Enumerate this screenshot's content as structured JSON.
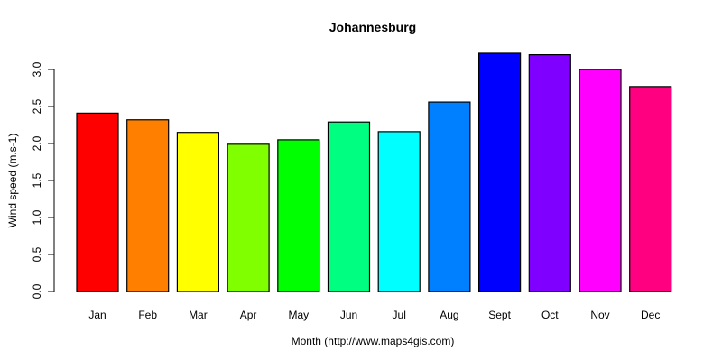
{
  "chart_data": {
    "type": "bar",
    "title": "Johannesburg",
    "xlabel": "Month (http://www.maps4gis.com)",
    "ylabel": "Wind speed (m.s-1)",
    "ylim": [
      0,
      3.25
    ],
    "yticks": [
      "0.0",
      "0.5",
      "1.0",
      "1.5",
      "2.0",
      "2.5",
      "3.0"
    ],
    "grid": false,
    "legend": null,
    "categories": [
      "Jan",
      "Feb",
      "Mar",
      "Apr",
      "May",
      "Jun",
      "Jul",
      "Aug",
      "Sept",
      "Oct",
      "Nov",
      "Dec"
    ],
    "values": [
      2.41,
      2.32,
      2.15,
      1.99,
      2.05,
      2.29,
      2.16,
      2.56,
      3.22,
      3.2,
      3.0,
      2.77
    ],
    "colors": [
      "#FF0000",
      "#FF8000",
      "#FFFF00",
      "#80FF00",
      "#00FF00",
      "#00FF80",
      "#00FFFF",
      "#0080FF",
      "#0000FF",
      "#8000FF",
      "#FF00FF",
      "#FF0080"
    ]
  }
}
